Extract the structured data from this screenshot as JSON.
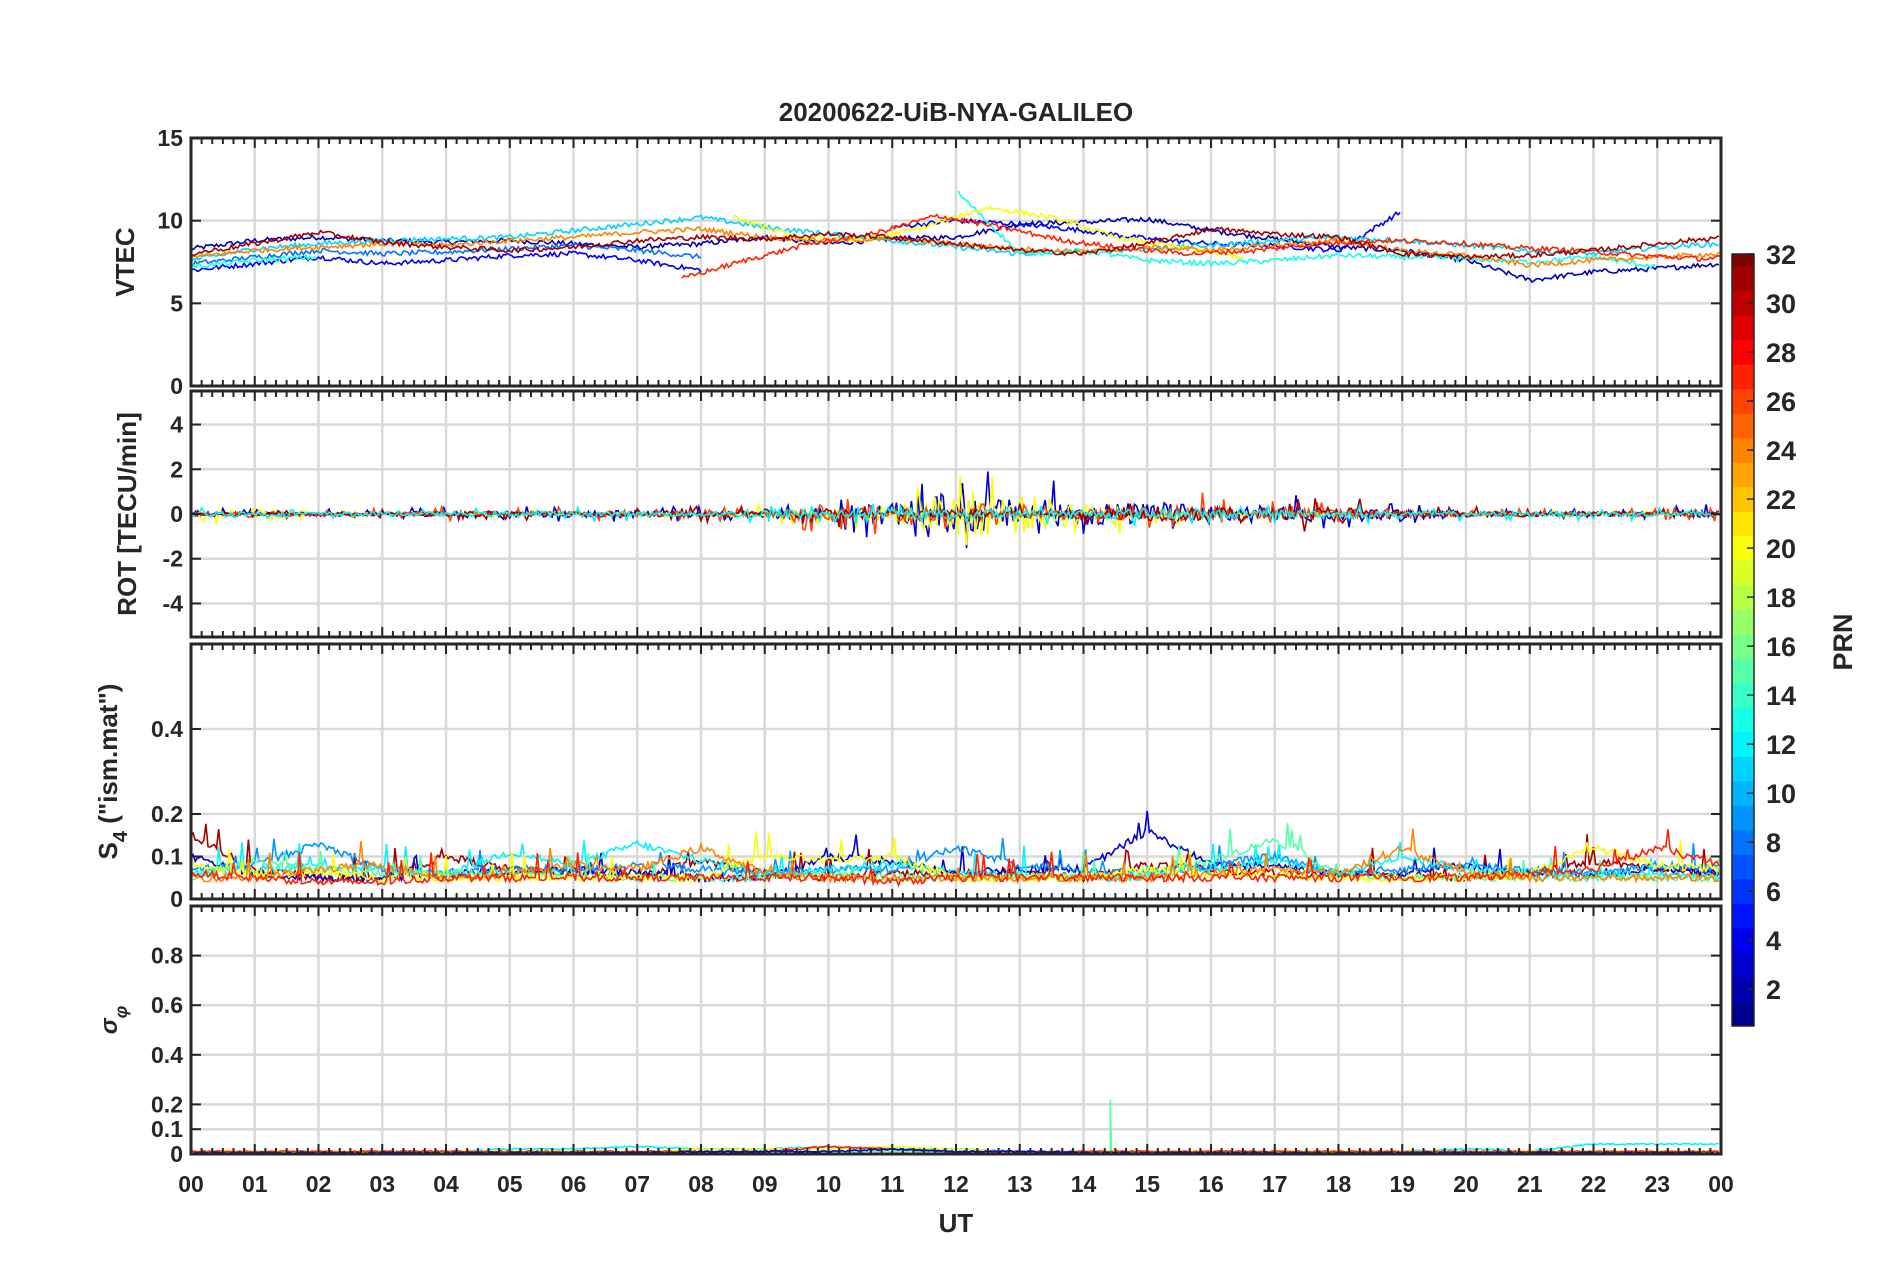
{
  "chart_data": {
    "type": "line",
    "title": "20200622-UiB-NYA-GALILEO",
    "xlabel": "UT",
    "x_ticks": [
      "00",
      "01",
      "02",
      "03",
      "04",
      "05",
      "06",
      "07",
      "08",
      "09",
      "10",
      "11",
      "12",
      "13",
      "14",
      "15",
      "16",
      "17",
      "18",
      "19",
      "20",
      "21",
      "22",
      "23",
      "00"
    ],
    "xlim_hours": [
      0,
      24
    ],
    "grid": true,
    "colorbar": {
      "label": "PRN",
      "range": [
        0.5,
        32
      ],
      "ticks": [
        2,
        4,
        6,
        8,
        10,
        12,
        14,
        16,
        18,
        20,
        22,
        24,
        26,
        28,
        30,
        32
      ],
      "colormap": "jet",
      "placement": "right"
    },
    "panels": [
      {
        "ylabel": "VTEC",
        "ylim": [
          0,
          15
        ],
        "yticks": [
          0,
          5,
          10,
          15
        ],
        "series": [
          {
            "prn": 2,
            "start": 0,
            "values": [
              8.3,
              8.8,
              9.0,
              8.8,
              8.7,
              8.8,
              8.6,
              8.4,
              8.6,
              9.0,
              8.6,
              8.9,
              9.0,
              9.8,
              9.9,
              10.1,
              9.4,
              8.9,
              8.4,
              8.2,
              7.6,
              6.4,
              6.9,
              7.1,
              7.4
            ]
          },
          {
            "prn": 4,
            "start": 0,
            "values": [
              7.0,
              7.4,
              7.8,
              7.4,
              7.6,
              7.9,
              8.0,
              7.6,
              7.0,
              null,
              null,
              9.6,
              10.0,
              9.8,
              9.4,
              8.9,
              8.6,
              8.5,
              8.2,
              10.6
            ]
          },
          {
            "prn": 8,
            "start": 0,
            "values": [
              7.4,
              7.8,
              8.2,
              8.0,
              8.1,
              8.3,
              8.5,
              8.2,
              7.8
            ]
          },
          {
            "prn": 11,
            "start": 0,
            "values": [
              7.6,
              8.3,
              8.6,
              8.8,
              8.9,
              9.0,
              9.4,
              9.8,
              10.2,
              9.6,
              9.2,
              8.8,
              8.4,
              8.0,
              8.1,
              8.3,
              8.5,
              8.8,
              9.0,
              8.8,
              8.5,
              8.2,
              8.0,
              8.4,
              8.6
            ]
          },
          {
            "prn": 13,
            "start": 0,
            "values": [
              7.2,
              7.6,
              7.8,
              null,
              null,
              null,
              null,
              null,
              null,
              null,
              null,
              null,
              11.8,
              8.0,
              8.2,
              7.6,
              7.4,
              7.6,
              7.9,
              7.8,
              7.7,
              7.5,
              7.8,
              7.2
            ]
          },
          {
            "prn": 20,
            "start": 8.5,
            "values": [
              10.2,
              9.0,
              8.8,
              9.6,
              10.8,
              10.2,
              9.0,
              8.4,
              7.8
            ]
          },
          {
            "prn": 24,
            "start": 0,
            "values": [
              7.8,
              8.2,
              8.4,
              8.6,
              8.5,
              8.8,
              9.0,
              9.3,
              9.5,
              9.0,
              8.8,
              8.9,
              8.6,
              8.3,
              8.1,
              8.4,
              8.2,
              8.5,
              8.8,
              8.2,
              7.9,
              7.3,
              7.6,
              7.8,
              8.0
            ]
          },
          {
            "prn": 27,
            "start": 7.7,
            "values": [
              6.5,
              7.6,
              8.6,
              9.2,
              10.3,
              9.6,
              8.8,
              8.3,
              8.0,
              8.2,
              8.6,
              8.8,
              8.7,
              8.4,
              8.2,
              7.9,
              7.7,
              7.9,
              8.1,
              9.4,
              10.0
            ]
          },
          {
            "prn": 31,
            "start": 0,
            "values": [
              8.0,
              8.6,
              9.3,
              8.7,
              8.4,
              8.2,
              8.4,
              8.8,
              9.0,
              8.9,
              9.2,
              9.0,
              8.6,
              8.2,
              8.0,
              8.6,
              9.5,
              9.2,
              9.0,
              8.0,
              7.8,
              7.9,
              8.2,
              8.6,
              9.0
            ]
          }
        ]
      },
      {
        "ylabel": "ROT [TECU/min]",
        "ylim": [
          -5.5,
          5.5
        ],
        "yticks": [
          -4,
          -2,
          0,
          2,
          4
        ],
        "series": [
          {
            "prn": 3,
            "amplitude": [
              0.2,
              0.15,
              0.15,
              0.15,
              0.2,
              0.2,
              0.25,
              0.3,
              0.2,
              0.3,
              0.6,
              0.8,
              1.6,
              1.0,
              0.9,
              0.8,
              0.7,
              0.6,
              0.4,
              0.3,
              0.2,
              0.15,
              0.15,
              0.2,
              0.3
            ]
          },
          {
            "prn": 20,
            "amplitude": [
              0.2,
              0.4,
              0.1,
              0.1,
              0.1,
              0.1,
              0.1,
              0.1,
              0.1,
              0.3,
              0.3,
              0.6,
              1.8,
              1.5,
              0.8,
              0.4,
              0.2,
              0.2,
              0.1,
              0.1,
              0.1,
              0.1,
              0.1,
              0.1,
              0.1
            ]
          },
          {
            "prn": 26,
            "amplitude": [
              0.2,
              0.15,
              0.2,
              0.15,
              0.2,
              0.2,
              0.2,
              0.2,
              0.2,
              0.2,
              0.6,
              0.6,
              0.4,
              0.3,
              0.3,
              0.5,
              0.7,
              0.4,
              0.3,
              0.2,
              0.2,
              0.15,
              0.2,
              0.2,
              0.2
            ]
          },
          {
            "prn": 31,
            "amplitude": [
              0.1,
              0.1,
              0.1,
              0.15,
              0.2,
              0.2,
              0.15,
              0.2,
              0.3,
              0.2,
              0.4,
              0.4,
              0.3,
              0.3,
              0.3,
              0.5,
              0.5,
              0.4,
              0.6,
              0.3,
              0.2,
              0.2,
              0.2,
              0.15,
              0.15
            ]
          },
          {
            "prn": 12,
            "amplitude": [
              0.2,
              0.2,
              0.15,
              0.15,
              0.15,
              0.2,
              0.2,
              0.2,
              0.15,
              0.4,
              0.3,
              0.3,
              0.3,
              0.3,
              0.3,
              0.4,
              0.3,
              0.3,
              0.3,
              0.2,
              0.2,
              0.2,
              0.2,
              0.2,
              0.3
            ]
          }
        ]
      },
      {
        "ylabel": "S4 (\"ism.mat\")",
        "ylabel_main": "S",
        "ylabel_sub": "4",
        "ylabel_rest": " (\"ism.mat\")",
        "ylim": [
          0,
          0.6
        ],
        "yticks": [
          0,
          0.1,
          0.2,
          0.4
        ],
        "ytick_labels": [
          "0",
          "0.1",
          "0.2",
          "0.4"
        ],
        "series": [
          {
            "prn": 31,
            "values": [
              0.15,
              0.07,
              0.05,
              0.05,
              0.1,
              0.07,
              0.06,
              0.05,
              0.09,
              0.06,
              0.05,
              0.06,
              0.06,
              0.06,
              0.05,
              0.08,
              0.07,
              0.06,
              0.06,
              0.06,
              0.05,
              0.06,
              0.09,
              0.07,
              0.06
            ]
          },
          {
            "prn": 3,
            "values": [
              0.1,
              0.06,
              0.05,
              0.05,
              0.06,
              0.06,
              0.07,
              0.06,
              0.05,
              0.05,
              0.1,
              0.09,
              0.06,
              0.07,
              0.07,
              0.16,
              0.08,
              0.08,
              0.06,
              0.06,
              0.08,
              0.06,
              0.06,
              0.07,
              0.06
            ]
          },
          {
            "prn": 9,
            "values": [
              0.07,
              0.08,
              0.13,
              0.07,
              0.06,
              0.07,
              0.07,
              0.08,
              0.07,
              0.06,
              0.07,
              0.07,
              0.12,
              0.08,
              0.07,
              0.06,
              0.08,
              0.1,
              0.06,
              0.07,
              0.08,
              0.07,
              0.06,
              0.08,
              0.07
            ]
          },
          {
            "prn": 12,
            "values": [
              0.06,
              0.07,
              0.08,
              0.07,
              0.06,
              0.11,
              0.08,
              0.13,
              0.09,
              0.06,
              0.07,
              0.08,
              0.06,
              0.06,
              0.05,
              0.05,
              0.07,
              0.09,
              0.06,
              0.1,
              0.07,
              0.06,
              0.06,
              0.06,
              0.05
            ]
          },
          {
            "prn": 15,
            "values": [
              0.05,
              0.09,
              0.07,
              0.06,
              0.06,
              0.06,
              0.06,
              0.05,
              0.05,
              0.05,
              0.06,
              0.05,
              0.05,
              0.05,
              0.05,
              0.06,
              0.09,
              0.14,
              0.06,
              0.05,
              0.05,
              0.05,
              0.05,
              0.05,
              0.05
            ]
          },
          {
            "prn": 20,
            "values": [
              0.08,
              0.06,
              0.06,
              0.05,
              0.05,
              0.05,
              0.05,
              0.05,
              0.05,
              0.1,
              0.09,
              0.1,
              0.05,
              0.05,
              0.05,
              0.07,
              0.06,
              0.06,
              0.05,
              0.05,
              0.05,
              0.06,
              0.12,
              0.08,
              0.07
            ]
          },
          {
            "prn": 24,
            "values": [
              0.05,
              0.05,
              0.07,
              0.08,
              0.05,
              0.06,
              0.08,
              0.07,
              0.12,
              0.06,
              0.05,
              0.05,
              0.05,
              0.05,
              0.05,
              0.05,
              0.06,
              0.07,
              0.06,
              0.12,
              0.06,
              0.05,
              0.05,
              0.05,
              0.05
            ]
          },
          {
            "prn": 27,
            "values": [
              0.06,
              0.05,
              0.04,
              0.04,
              0.05,
              0.05,
              0.05,
              0.05,
              0.05,
              0.05,
              0.05,
              0.04,
              0.05,
              0.05,
              0.05,
              0.05,
              0.05,
              0.05,
              0.05,
              0.05,
              0.05,
              0.06,
              0.07,
              0.12,
              0.08
            ]
          }
        ]
      },
      {
        "ylabel": "σφ",
        "ylabel_main": "σ",
        "ylabel_sub": "φ",
        "ylim": [
          0,
          1
        ],
        "yticks": [
          0,
          0.1,
          0.2,
          0.4,
          0.6,
          0.8
        ],
        "ytick_labels": [
          "0",
          "0.1",
          "0.2",
          "0.4",
          "0.6",
          "0.8"
        ],
        "series": [
          {
            "prn": 12,
            "values": [
              0.01,
              0.01,
              0.01,
              0.01,
              0.01,
              0.02,
              0.02,
              0.03,
              0.02,
              0.02,
              0.03,
              0.02,
              0.02,
              0.01,
              0.01,
              0.01,
              0.01,
              0.01,
              0.01,
              0.01,
              0.02,
              0.01,
              0.04,
              0.04,
              0.04
            ]
          },
          {
            "prn": 15,
            "values": [
              0.01,
              0.01,
              0.01,
              0.01,
              0.01,
              0.01,
              0.01,
              0.01,
              0.01,
              0.01,
              0.01,
              0.01,
              0.01,
              0.01,
              0.01,
              0.01,
              0.01,
              0.01,
              0.01,
              0.01,
              0.01,
              0.01,
              0.01,
              0.01,
              0.01
            ],
            "spike": {
              "hour": 14.42,
              "value": 0.22
            }
          },
          {
            "prn": 20,
            "values": [
              0.01,
              0.01,
              0.01,
              0.01,
              0.01,
              0.01,
              0.01,
              0.01,
              0.02,
              0.02,
              0.02,
              0.03,
              0.02,
              0.01,
              0.01,
              0.01,
              0.01,
              0.01,
              0.01,
              0.01,
              0.01,
              0.01,
              0.01,
              0.01,
              0.01
            ]
          },
          {
            "prn": 27,
            "values": [
              0.01,
              0.01,
              0.01,
              0.01,
              0.01,
              0.01,
              0.01,
              0.01,
              0.01,
              0.01,
              0.03,
              0.02,
              0.01,
              0.01,
              0.01,
              0.01,
              0.01,
              0.01,
              0.01,
              0.01,
              0.01,
              0.01,
              0.01,
              0.01,
              0.01
            ]
          },
          {
            "prn": 4,
            "values": [
              0.005,
              0.005,
              0.005,
              0.005,
              0.005,
              0.005,
              0.005,
              0.005,
              0.01,
              0.01,
              0.01,
              0.02,
              0.01,
              0.01,
              0.005,
              0.005,
              0.005,
              0.005,
              0.005,
              0.005,
              0.005,
              0.005,
              0.005,
              0.005,
              0.005
            ]
          }
        ]
      }
    ]
  }
}
